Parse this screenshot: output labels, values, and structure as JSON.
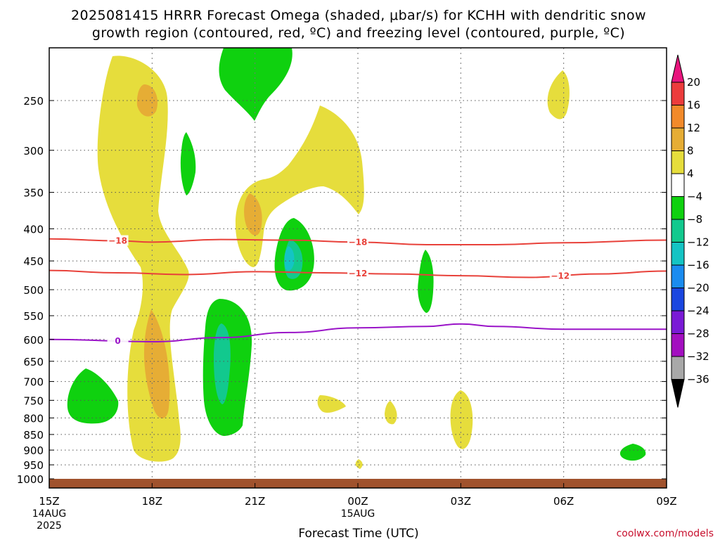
{
  "chart_data": {
    "type": "contour",
    "title_line1": "2025081415 HRRR Forecast Omega (shaded, μbar/s) for KCHH with dendritic snow",
    "title_line2": "growth region (contoured, red, ºC) and freezing level (contoured, purple, ºC)",
    "xlabel": "Forecast Time (UTC)",
    "credit": "coolwx.com/models",
    "x_ticks": [
      {
        "hour": 0,
        "label": "15Z",
        "sub1": "14AUG",
        "sub2": "2025"
      },
      {
        "hour": 3,
        "label": "18Z",
        "sub1": "",
        "sub2": ""
      },
      {
        "hour": 6,
        "label": "21Z",
        "sub1": "",
        "sub2": ""
      },
      {
        "hour": 9,
        "label": "00Z",
        "sub1": "15AUG",
        "sub2": ""
      },
      {
        "hour": 12,
        "label": "03Z",
        "sub1": "",
        "sub2": ""
      },
      {
        "hour": 15,
        "label": "06Z",
        "sub1": "",
        "sub2": ""
      },
      {
        "hour": 18,
        "label": "09Z",
        "sub1": "",
        "sub2": ""
      }
    ],
    "y_ticks": [
      250,
      300,
      350,
      400,
      450,
      500,
      550,
      600,
      650,
      700,
      750,
      800,
      850,
      900,
      950,
      1000
    ],
    "colorbar": {
      "labels": [
        "20",
        "16",
        "12",
        "8",
        "4",
        "−4",
        "−8",
        "−12",
        "−16",
        "−20",
        "−24",
        "−28",
        "−32",
        "−36"
      ],
      "colors": [
        "#e8157d",
        "#ec3c3c",
        "#f28a2a",
        "#e6ad35",
        "#e6dd3c",
        "#ffffff",
        "#0fd10f",
        "#12c98e",
        "#14c4c4",
        "#1a8cf0",
        "#1a46e0",
        "#7a1ad6",
        "#a30fc0",
        "#a8a8a8",
        "#000000"
      ]
    },
    "contours": [
      {
        "name": "-18",
        "color": "#e8413a",
        "labels": [
          {
            "hour": 2.0,
            "label": "−18"
          },
          {
            "hour": 9.0,
            "label": "−18"
          }
        ],
        "points": [
          [
            0,
            415
          ],
          [
            2,
            418
          ],
          [
            3,
            420
          ],
          [
            5,
            416
          ],
          [
            7,
            417
          ],
          [
            9,
            420
          ],
          [
            11,
            424
          ],
          [
            13,
            424
          ],
          [
            15,
            421
          ],
          [
            18,
            417
          ]
        ]
      },
      {
        "name": "-12",
        "color": "#e8413a",
        "labels": [
          {
            "hour": 9.0,
            "label": "−12"
          },
          {
            "hour": 14.9,
            "label": "−12"
          }
        ],
        "points": [
          [
            0,
            466
          ],
          [
            2,
            470
          ],
          [
            4,
            473
          ],
          [
            6,
            468
          ],
          [
            8,
            470
          ],
          [
            10,
            472
          ],
          [
            12,
            475
          ],
          [
            14,
            478
          ],
          [
            16,
            472
          ],
          [
            18,
            467
          ]
        ]
      },
      {
        "name": "0",
        "color": "#9a14c8",
        "labels": [
          {
            "hour": 2.0,
            "label": "0"
          }
        ],
        "points": [
          [
            0,
            600
          ],
          [
            3,
            605
          ],
          [
            5,
            596
          ],
          [
            7,
            585
          ],
          [
            9,
            575
          ],
          [
            11,
            572
          ],
          [
            12,
            567
          ],
          [
            13,
            572
          ],
          [
            15,
            578
          ],
          [
            18,
            578
          ]
        ]
      }
    ],
    "ground_level": 1010
  }
}
